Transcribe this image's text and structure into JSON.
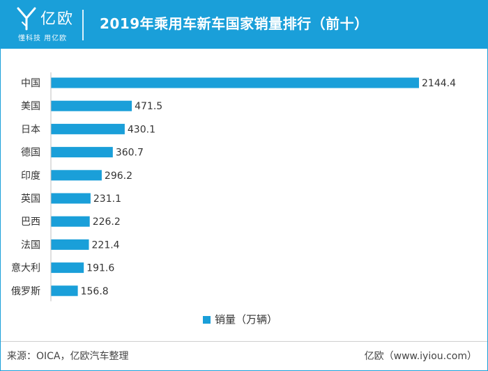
{
  "header": {
    "logo_text": "亿欧",
    "logo_tagline": "懂科技 用亿欧",
    "title": "2019年乘用车新车国家销量排行（前十）"
  },
  "chart_data": {
    "type": "bar",
    "orientation": "horizontal",
    "categories": [
      "中国",
      "美国",
      "日本",
      "德国",
      "印度",
      "英国",
      "巴西",
      "法国",
      "意大利",
      "俄罗斯"
    ],
    "series": [
      {
        "name": "销量（万辆）",
        "values": [
          2144.4,
          471.5,
          430.1,
          360.7,
          296.2,
          231.1,
          226.2,
          221.4,
          191.6,
          156.8
        ],
        "color": "#1a9fd9"
      }
    ],
    "data_labels": [
      "2144.4",
      "471.5",
      "430.1",
      "360.7",
      "296.2",
      "231.1",
      "226.2",
      "221.4",
      "191.6",
      "156.8"
    ],
    "legend_position": "bottom-center",
    "grid": false
  },
  "footer": {
    "source": "来源：OICA，亿欧汽车整理",
    "brand": "亿欧（www.iyiou.com）"
  },
  "colors": {
    "accent": "#1a9fd9",
    "text": "#333333"
  }
}
